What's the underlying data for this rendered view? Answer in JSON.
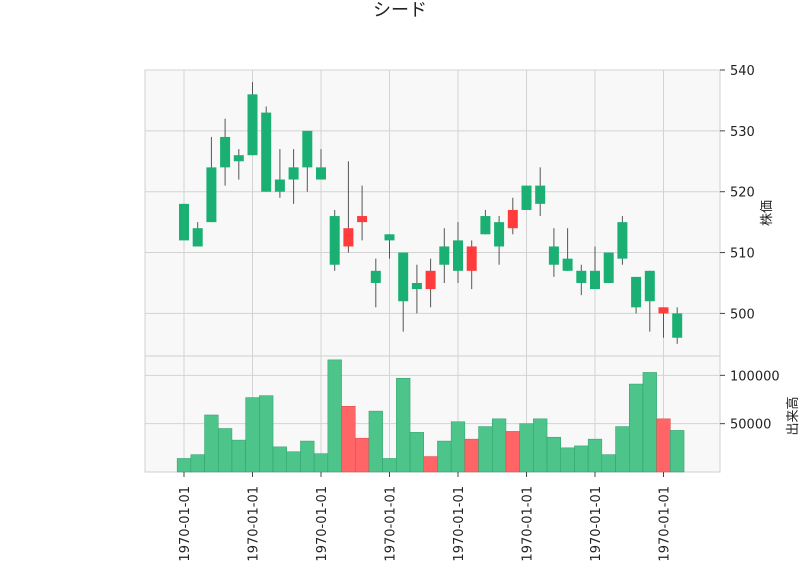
{
  "chart_data": {
    "type": "candlestick",
    "title": "シード",
    "price_panel": {
      "ylabel": "株価",
      "ylim": [
        493,
        540
      ],
      "yticks": [
        500,
        510,
        520,
        530,
        540
      ],
      "grid": true,
      "y_axis_side": "right"
    },
    "volume_panel": {
      "ylabel": "出来高",
      "ylim": [
        0,
        120000
      ],
      "yticks": [
        50000,
        100000
      ],
      "ytick_labels": [
        "50000",
        "100000"
      ],
      "grid": true,
      "y_axis_side": "right"
    },
    "x_tick_labels": [
      "1970-01-01",
      "1970-01-01",
      "1970-01-01",
      "1970-01-01",
      "1970-01-01",
      "1970-01-01",
      "1970-01-01",
      "1970-01-01"
    ],
    "x_tick_at_candle": [
      0,
      5,
      10,
      15,
      20,
      25,
      30,
      35
    ],
    "colors": {
      "up": "#1ab073",
      "down": "#ff3b3b",
      "up_volume": "#4cc48a",
      "down_volume": "#ff6466",
      "wick": "#555555"
    },
    "ohlc": [
      {
        "o": 512,
        "h": 518,
        "l": 512,
        "c": 518,
        "v": 14000
      },
      {
        "o": 511,
        "h": 515,
        "l": 511,
        "c": 514,
        "v": 18000
      },
      {
        "o": 515,
        "h": 529,
        "l": 515,
        "c": 524,
        "v": 59000
      },
      {
        "o": 524,
        "h": 532,
        "l": 521,
        "c": 529,
        "v": 45000
      },
      {
        "o": 525,
        "h": 527,
        "l": 522,
        "c": 526,
        "v": 33000
      },
      {
        "o": 526,
        "h": 538,
        "l": 526,
        "c": 536,
        "v": 77000
      },
      {
        "o": 520,
        "h": 534,
        "l": 520,
        "c": 533,
        "v": 79000
      },
      {
        "o": 520,
        "h": 527,
        "l": 519,
        "c": 522,
        "v": 26000
      },
      {
        "o": 522,
        "h": 527,
        "l": 518,
        "c": 524,
        "v": 21000
      },
      {
        "o": 524,
        "h": 530,
        "l": 520,
        "c": 530,
        "v": 32000
      },
      {
        "o": 522,
        "h": 527,
        "l": 522,
        "c": 524,
        "v": 19000
      },
      {
        "o": 508,
        "h": 517,
        "l": 507,
        "c": 516,
        "v": 116000
      },
      {
        "o": 514,
        "h": 525,
        "l": 510,
        "c": 511,
        "v": 68000
      },
      {
        "o": 516,
        "h": 521,
        "l": 512,
        "c": 515,
        "v": 35000
      },
      {
        "o": 505,
        "h": 509,
        "l": 501,
        "c": 507,
        "v": 63000
      },
      {
        "o": 512,
        "h": 513,
        "l": 509,
        "c": 513,
        "v": 14000
      },
      {
        "o": 502,
        "h": 510,
        "l": 497,
        "c": 510,
        "v": 97000
      },
      {
        "o": 504,
        "h": 508,
        "l": 500,
        "c": 505,
        "v": 41000
      },
      {
        "o": 507,
        "h": 509,
        "l": 501,
        "c": 504,
        "v": 16000
      },
      {
        "o": 508,
        "h": 514,
        "l": 505,
        "c": 511,
        "v": 32000
      },
      {
        "o": 507,
        "h": 515,
        "l": 505,
        "c": 512,
        "v": 52000
      },
      {
        "o": 511,
        "h": 512,
        "l": 504,
        "c": 507,
        "v": 34000
      },
      {
        "o": 513,
        "h": 517,
        "l": 513,
        "c": 516,
        "v": 47000
      },
      {
        "o": 511,
        "h": 516,
        "l": 508,
        "c": 515,
        "v": 55000
      },
      {
        "o": 517,
        "h": 519,
        "l": 513,
        "c": 514,
        "v": 42000
      },
      {
        "o": 517,
        "h": 521,
        "l": 517,
        "c": 521,
        "v": 50000
      },
      {
        "o": 518,
        "h": 524,
        "l": 516,
        "c": 521,
        "v": 55000
      },
      {
        "o": 508,
        "h": 514,
        "l": 506,
        "c": 511,
        "v": 36000
      },
      {
        "o": 507,
        "h": 514,
        "l": 507,
        "c": 509,
        "v": 25000
      },
      {
        "o": 505,
        "h": 508,
        "l": 503,
        "c": 507,
        "v": 27000
      },
      {
        "o": 504,
        "h": 511,
        "l": 504,
        "c": 507,
        "v": 34000
      },
      {
        "o": 505,
        "h": 510,
        "l": 505,
        "c": 510,
        "v": 18000
      },
      {
        "o": 509,
        "h": 516,
        "l": 508,
        "c": 515,
        "v": 47000
      },
      {
        "o": 501,
        "h": 506,
        "l": 500,
        "c": 506,
        "v": 91000
      },
      {
        "o": 502,
        "h": 507,
        "l": 497,
        "c": 507,
        "v": 103000
      },
      {
        "o": 501,
        "h": 501,
        "l": 496,
        "c": 500,
        "v": 55000
      },
      {
        "o": 496,
        "h": 501,
        "l": 495,
        "c": 500,
        "v": 43000
      }
    ]
  }
}
